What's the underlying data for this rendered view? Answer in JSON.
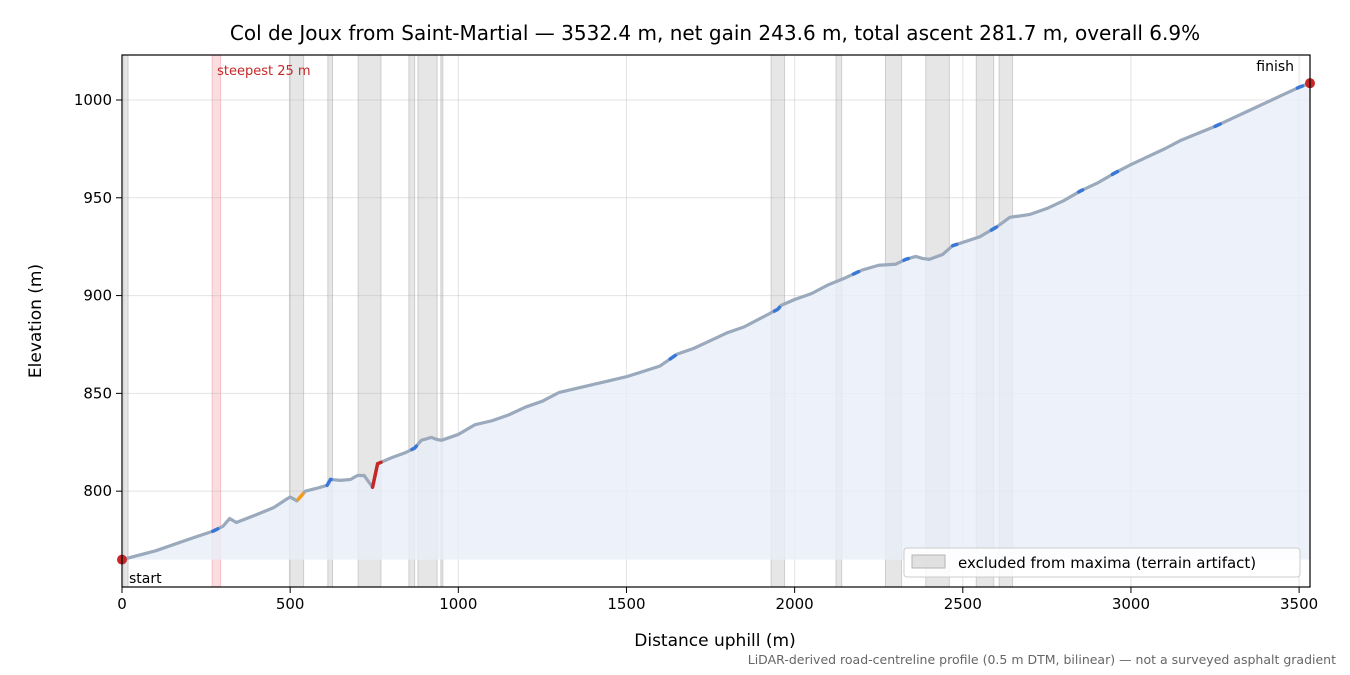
{
  "chart_data": {
    "type": "line",
    "title": "Col de Joux from Saint-Martial — 3532.4 m, net gain 243.6 m, total ascent 281.7 m, overall 6.9%",
    "xlabel": "Distance uphill (m)",
    "ylabel": "Elevation (m)",
    "xlim": [
      0,
      3532.4
    ],
    "ylim": [
      751,
      1023
    ],
    "x_ticks": [
      0,
      500,
      1000,
      1500,
      2000,
      2500,
      3000,
      3500
    ],
    "y_ticks": [
      800,
      850,
      900,
      950,
      1000
    ],
    "grid": true,
    "fill_baseline": 765,
    "series": [
      {
        "points": [
          [
            0,
            765
          ],
          [
            100,
            769.5
          ],
          [
            200,
            775.5
          ],
          [
            270,
            779.5
          ],
          [
            300,
            782
          ],
          [
            320,
            786
          ],
          [
            340,
            784
          ],
          [
            400,
            788
          ],
          [
            450,
            791.5
          ],
          [
            490,
            796
          ],
          [
            500,
            797
          ],
          [
            520,
            795
          ],
          [
            545,
            800
          ],
          [
            580,
            801.5
          ],
          [
            610,
            803
          ],
          [
            620,
            806
          ],
          [
            650,
            805.5
          ],
          [
            680,
            806
          ],
          [
            700,
            808
          ],
          [
            720,
            808
          ],
          [
            745,
            802
          ],
          [
            760,
            814
          ],
          [
            800,
            817
          ],
          [
            840,
            819.5
          ],
          [
            870,
            822
          ],
          [
            890,
            826
          ],
          [
            920,
            827.5
          ],
          [
            935,
            826.5
          ],
          [
            950,
            826
          ],
          [
            1000,
            829
          ],
          [
            1050,
            834
          ],
          [
            1100,
            836
          ],
          [
            1150,
            839
          ],
          [
            1200,
            843
          ],
          [
            1250,
            846
          ],
          [
            1300,
            850.5
          ],
          [
            1400,
            854.5
          ],
          [
            1500,
            858.5
          ],
          [
            1600,
            864
          ],
          [
            1650,
            870
          ],
          [
            1700,
            873
          ],
          [
            1750,
            877
          ],
          [
            1800,
            881
          ],
          [
            1850,
            884
          ],
          [
            1900,
            888.5
          ],
          [
            1950,
            893
          ],
          [
            1960,
            895
          ],
          [
            2000,
            898
          ],
          [
            2050,
            901
          ],
          [
            2100,
            905.5
          ],
          [
            2150,
            909
          ],
          [
            2200,
            913
          ],
          [
            2250,
            915.5
          ],
          [
            2300,
            916
          ],
          [
            2330,
            918.5
          ],
          [
            2360,
            920
          ],
          [
            2380,
            919
          ],
          [
            2400,
            918.5
          ],
          [
            2440,
            921
          ],
          [
            2470,
            925.5
          ],
          [
            2550,
            930
          ],
          [
            2600,
            935
          ],
          [
            2640,
            940
          ],
          [
            2700,
            941.5
          ],
          [
            2750,
            944.5
          ],
          [
            2800,
            948.5
          ],
          [
            2850,
            953.5
          ],
          [
            2900,
            957.5
          ],
          [
            2950,
            962.5
          ],
          [
            3000,
            967
          ],
          [
            3050,
            971
          ],
          [
            3100,
            975
          ],
          [
            3150,
            979.5
          ],
          [
            3200,
            983
          ],
          [
            3250,
            986.5
          ],
          [
            3300,
            990.5
          ],
          [
            3350,
            994.5
          ],
          [
            3400,
            998.5
          ],
          [
            3450,
            1002.5
          ],
          [
            3500,
            1006.5
          ],
          [
            3532.4,
            1008.6
          ]
        ],
        "segments": [
          {
            "color": "#c62828",
            "x": [
              745,
              770
            ]
          },
          {
            "color": "#f29b1d",
            "x": [
              524,
              538
            ]
          },
          {
            "color": "#3a78d8",
            "x": [
              270,
              285
            ]
          },
          {
            "color": "#3a78d8",
            "x": [
              610,
              622
            ]
          },
          {
            "color": "#3a78d8",
            "x": [
              862,
              875
            ]
          },
          {
            "color": "#3a78d8",
            "x": [
              1630,
              1645
            ]
          },
          {
            "color": "#3a78d8",
            "x": [
              1940,
              1955
            ]
          },
          {
            "color": "#3a78d8",
            "x": [
              2175,
              2190
            ]
          },
          {
            "color": "#3a78d8",
            "x": [
              2325,
              2338
            ]
          },
          {
            "color": "#3a78d8",
            "x": [
              2470,
              2482
            ]
          },
          {
            "color": "#3a78d8",
            "x": [
              2585,
              2600
            ]
          },
          {
            "color": "#3a78d8",
            "x": [
              2845,
              2856
            ]
          },
          {
            "color": "#3a78d8",
            "x": [
              2945,
              2960
            ]
          },
          {
            "color": "#3a78d8",
            "x": [
              3250,
              3265
            ]
          },
          {
            "color": "#3a78d8",
            "x": [
              3495,
              3510
            ]
          }
        ]
      }
    ],
    "excluded_ranges": [
      [
        5,
        18
      ],
      [
        498,
        540
      ],
      [
        612,
        626
      ],
      [
        702,
        770
      ],
      [
        853,
        870
      ],
      [
        880,
        937
      ],
      [
        948,
        954
      ],
      [
        1930,
        1970
      ],
      [
        2123,
        2140
      ],
      [
        2270,
        2318
      ],
      [
        2390,
        2460
      ],
      [
        2540,
        2592
      ],
      [
        2608,
        2648
      ]
    ],
    "steepest_range": [
      268,
      293
    ],
    "annotations": {
      "steepest": "steepest 25 m",
      "start": "start",
      "finish": "finish"
    },
    "markers": [
      {
        "x": 0,
        "y": 765,
        "color": "#c62828"
      },
      {
        "x": 3532.4,
        "y": 1008.6,
        "color": "#c62828"
      }
    ],
    "legend": {
      "label": "excluded from maxima (terrain artifact)",
      "placement": "lower-right"
    },
    "footnote": "LiDAR-derived road-centreline profile (0.5 m DTM, bilinear) — not a surveyed asphalt gradient",
    "colors": {
      "line": "#9aa9bc",
      "fill": "#e9eff9",
      "excluded": "#c8c8c8",
      "steepest": "#f7c6c9",
      "marker": "#c62828"
    }
  }
}
